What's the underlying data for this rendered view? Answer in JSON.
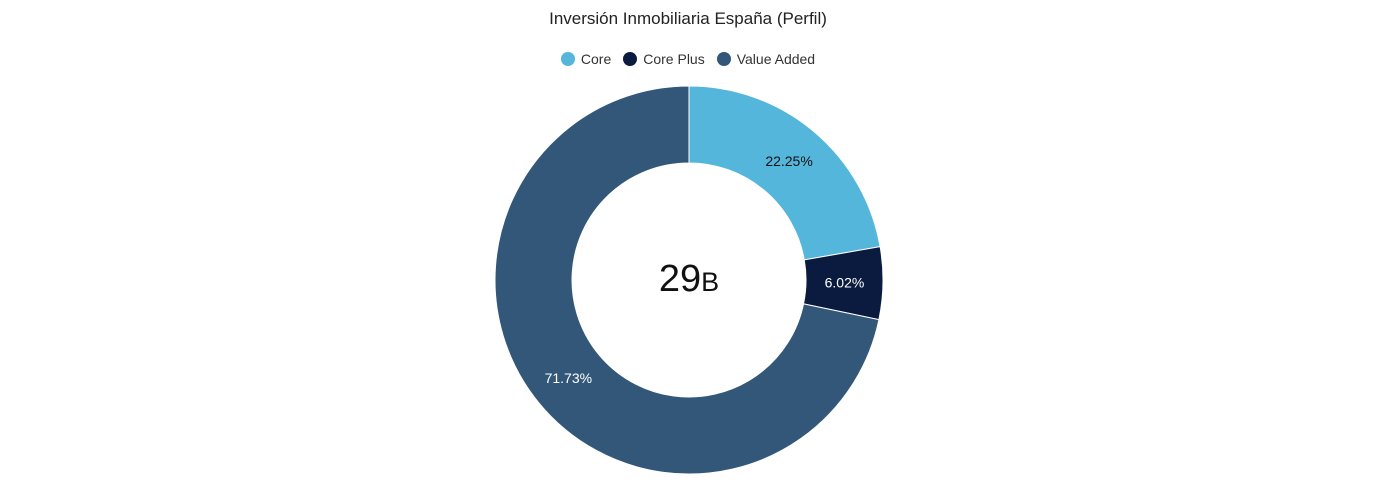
{
  "chart_data": {
    "type": "pie",
    "title": "Inversión Inmobiliaria España (Perfil)",
    "categories": [
      "Core",
      "Core Plus",
      "Value Added"
    ],
    "values": [
      22.25,
      6.02,
      71.73
    ],
    "labels": [
      "22.25%",
      "6.02%",
      "71.73%"
    ],
    "colors": [
      "#54b6da",
      "#0b1a3f",
      "#335778"
    ],
    "label_colors": [
      "#111111",
      "#ffffff",
      "#ffffff"
    ],
    "donut": true,
    "legend_position": "top",
    "center_value": "29",
    "center_unit": "B"
  }
}
